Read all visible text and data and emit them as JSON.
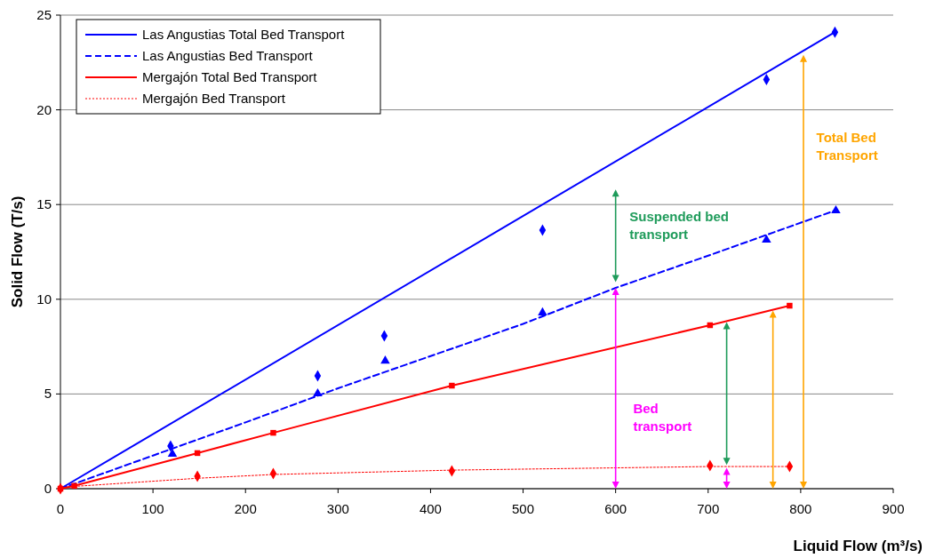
{
  "chart_data": {
    "type": "line",
    "xlabel": "Liquid Flow (m³/s)",
    "ylabel": "Solid  Flow (T/s)",
    "xlim": [
      0,
      900
    ],
    "xticks": [
      0,
      100,
      200,
      300,
      400,
      500,
      600,
      700,
      800,
      900
    ],
    "ylim": [
      0,
      25
    ],
    "yticks": [
      0,
      5,
      10,
      15,
      20,
      25
    ],
    "grid": "y",
    "legend": "top left",
    "series": [
      {
        "name": "Las Angustias Total Bed Transport",
        "color": "#0000ff",
        "line_style": "solid",
        "marker": "none",
        "x": [
          0,
          837
        ],
        "values": [
          0,
          24.1
        ]
      },
      {
        "name": "Las Angustias Bed Transport",
        "color": "#0000ff",
        "line_style": "dashed",
        "marker": "none",
        "x": [
          0,
          100,
          200,
          300,
          400,
          500,
          600,
          700,
          838
        ],
        "values": [
          0,
          1.75,
          3.5,
          5.3,
          7.0,
          8.7,
          10.6,
          12.3,
          14.7
        ]
      },
      {
        "name": "Mergajón Total Bed Transport",
        "color": "#ff0000",
        "line_style": "solid",
        "marker": "none",
        "x": [
          0,
          15,
          148,
          230,
          423,
          702,
          788
        ],
        "values": [
          0,
          0.15,
          1.88,
          2.95,
          5.44,
          8.63,
          9.66
        ]
      },
      {
        "name": "Mergajón Bed Transport",
        "color": "#ff0000",
        "line_style": "dotted",
        "marker": "none",
        "x": [
          0,
          15,
          148,
          230,
          423,
          702,
          788
        ],
        "values": [
          0,
          0.12,
          0.55,
          0.75,
          0.98,
          1.17,
          1.17
        ]
      },
      {
        "type": "scatter",
        "color": "#0000ff",
        "marker": "diamond",
        "x": [
          119,
          278,
          350,
          521,
          763,
          837
        ],
        "values": [
          2.25,
          5.96,
          8.07,
          13.65,
          21.6,
          24.1
        ]
      },
      {
        "type": "scatter",
        "color": "#0000ff",
        "marker": "triangle",
        "x": [
          121,
          278,
          351,
          521,
          763,
          838
        ],
        "values": [
          1.83,
          5.02,
          6.75,
          9.29,
          13.13,
          14.68
        ]
      },
      {
        "type": "scatter",
        "color": "#ff0000",
        "marker": "square",
        "x": [
          0,
          15,
          148,
          230,
          423,
          702,
          788
        ],
        "values": [
          0,
          0.15,
          1.88,
          2.95,
          5.44,
          8.63,
          9.66
        ]
      },
      {
        "type": "scatter",
        "color": "#ff0000",
        "marker": "diamond",
        "x": [
          0,
          148,
          230,
          423,
          702,
          788
        ],
        "values": [
          0,
          0.66,
          0.8,
          0.94,
          1.22,
          1.17
        ]
      }
    ],
    "annotations": [
      "Suspended bed transport",
      "Bed transport",
      "Total Bed Transport"
    ]
  }
}
